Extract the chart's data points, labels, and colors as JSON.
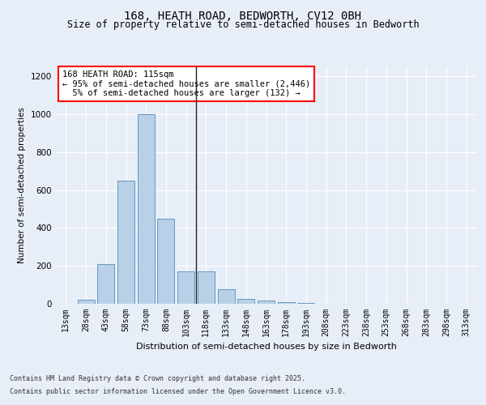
{
  "title1": "168, HEATH ROAD, BEDWORTH, CV12 0BH",
  "title2": "Size of property relative to semi-detached houses in Bedworth",
  "xlabel": "Distribution of semi-detached houses by size in Bedworth",
  "ylabel": "Number of semi-detached properties",
  "categories": [
    "13sqm",
    "28sqm",
    "43sqm",
    "58sqm",
    "73sqm",
    "88sqm",
    "103sqm",
    "118sqm",
    "133sqm",
    "148sqm",
    "163sqm",
    "178sqm",
    "193sqm",
    "208sqm",
    "223sqm",
    "238sqm",
    "253sqm",
    "268sqm",
    "283sqm",
    "298sqm",
    "313sqm"
  ],
  "values": [
    0,
    20,
    210,
    650,
    1000,
    450,
    170,
    170,
    75,
    25,
    18,
    10,
    5,
    0,
    0,
    0,
    0,
    0,
    0,
    0,
    0
  ],
  "bar_color": "#b8d0e8",
  "bar_edge_color": "#6699bb",
  "ylim": [
    0,
    1250
  ],
  "yticks": [
    0,
    200,
    400,
    600,
    800,
    1000,
    1200
  ],
  "vline_pos": 6.5,
  "legend_title": "168 HEATH ROAD: 115sqm",
  "legend_line1": "← 95% of semi-detached houses are smaller (2,446)",
  "legend_line2": "5% of semi-detached houses are larger (132) →",
  "footer_line1": "Contains HM Land Registry data © Crown copyright and database right 2025.",
  "footer_line2": "Contains public sector information licensed under the Open Government Licence v3.0.",
  "bg_color": "#e8eef8",
  "plot_bg_color": "#e8eef8"
}
